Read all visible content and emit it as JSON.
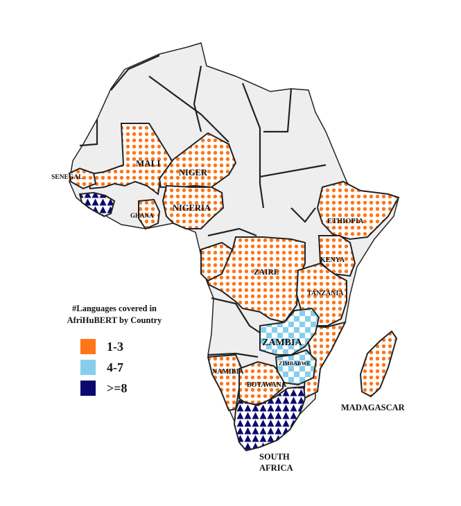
{
  "legend": {
    "title_line1": "#Languages covered in",
    "title_line2": "AfriHuBERT by Country",
    "items": [
      {
        "label": "1-3",
        "color": "#ff7518"
      },
      {
        "label": "4-7",
        "color": "#87ceeb"
      },
      {
        "label": ">=8",
        "color": "#0a0a6e"
      }
    ]
  },
  "countries": {
    "senegal": "SENEGAL",
    "mali": "MALI",
    "niger": "NIGER",
    "nigeria": "NIGERIA",
    "ghana": "GHANA",
    "ethiopia": "ETHIOPIA",
    "kenya": "KENYA",
    "zaire": "ZAIRE",
    "tanzania": "TANZANIA",
    "zambia": "ZAMBIA",
    "zimbabwe": "ZIMBABWE",
    "namibia": "NAMIBIA",
    "botawana": "BOTAWANA",
    "madagascar": "MADAGASCAR",
    "south_africa_line1": "SOUTH",
    "south_africa_line2": "AFRICA"
  }
}
